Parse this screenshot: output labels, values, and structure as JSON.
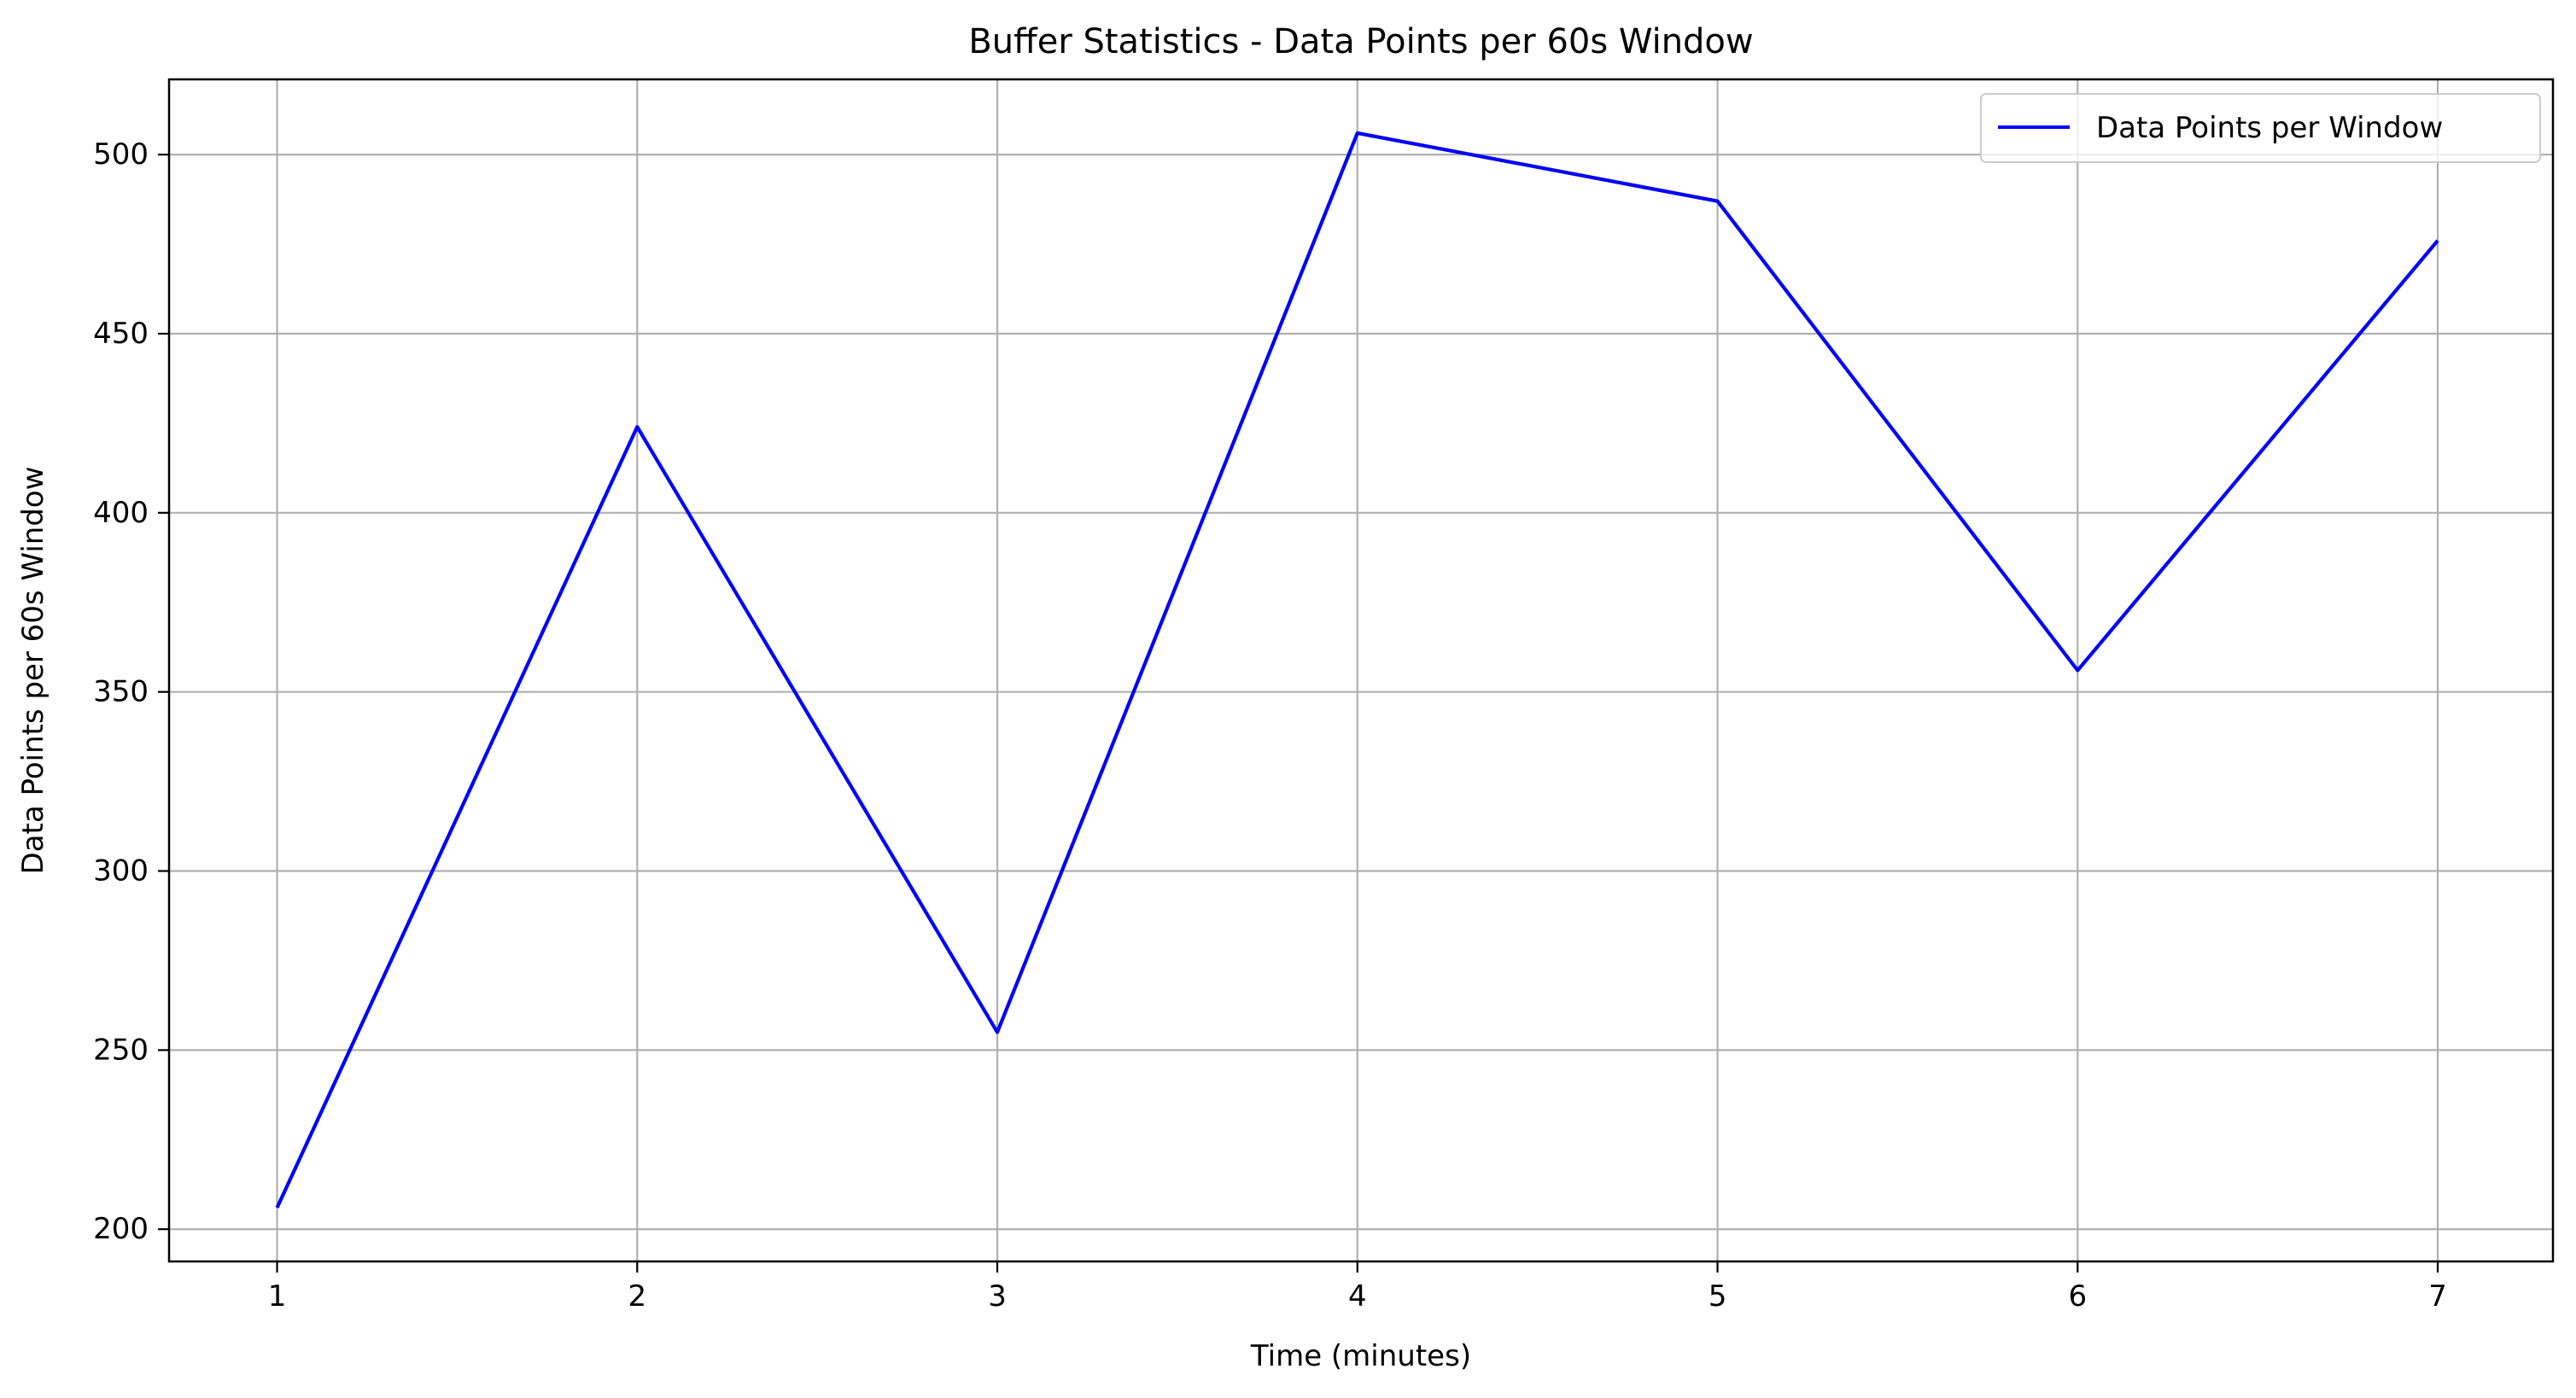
{
  "chart_data": {
    "type": "line",
    "title": "Buffer Statistics - Data Points per 60s Window",
    "xlabel": "Time (minutes)",
    "ylabel": "Data Points per 60s Window",
    "x": [
      1,
      2,
      3,
      4,
      5,
      6,
      7
    ],
    "xticks": [
      "1",
      "2",
      "3",
      "4",
      "5",
      "6",
      "7"
    ],
    "yticks": [
      "200",
      "250",
      "300",
      "350",
      "400",
      "450",
      "500"
    ],
    "xlim": [
      0.7,
      7.32
    ],
    "ylim": [
      191,
      521
    ],
    "grid": true,
    "legend_position": "top-right",
    "series": [
      {
        "name": "Data Points per Window",
        "color": "#0000ff",
        "values": [
          206,
          424,
          255,
          506,
          487,
          356,
          476
        ]
      }
    ]
  }
}
